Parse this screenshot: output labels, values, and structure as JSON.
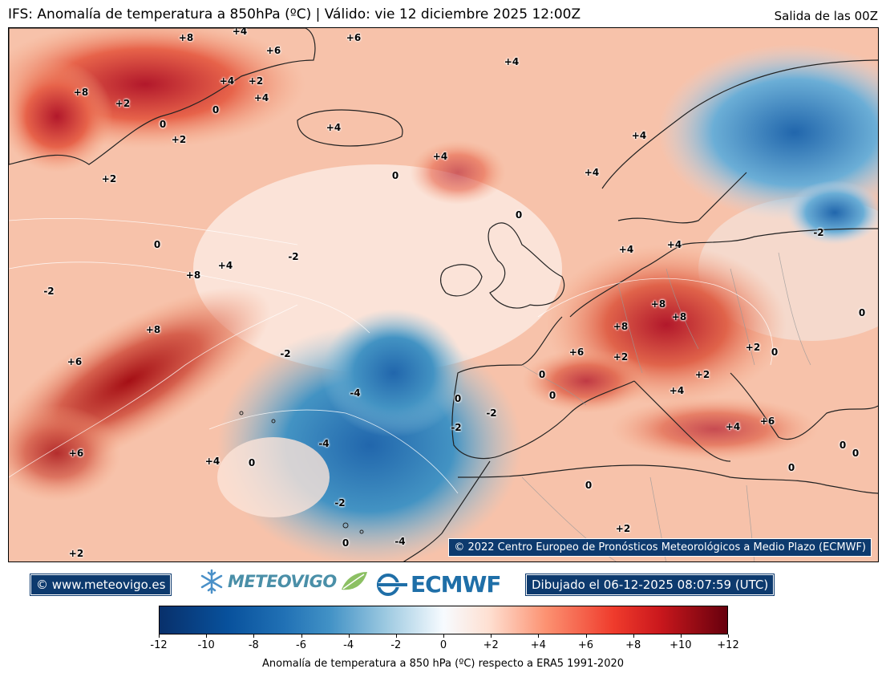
{
  "header": {
    "title": "IFS: Anomalía de temperatura a 850hPa  (ºC) | Válido: vie 12 diciembre 2025 12:00Z",
    "run": "Salida de las 00Z"
  },
  "map": {
    "copyright": "© 2022 Centro Europeo de Pronósticos Meteorológicos a Medio Plazo (ECMWF)",
    "contour_labels": [
      "+8",
      "+4",
      "+6",
      "+6",
      "+4",
      "+8",
      "+2",
      "+4",
      "+2",
      "0",
      "0",
      "+4",
      "+2",
      "+2",
      "+4",
      "+4",
      "0",
      "+4",
      "0",
      "0",
      "+4",
      "+8",
      "-2",
      "-2",
      "+8",
      "+6",
      "+8",
      "-2",
      "+6",
      "-4",
      "-4",
      "+4",
      "0",
      "-2",
      "0",
      "+6",
      "+2",
      "+8",
      "+8",
      "+4",
      "+2",
      "0",
      "+2",
      "+4",
      "+6",
      "+4",
      "0",
      "0",
      "0",
      "0",
      "+2",
      "0",
      "+2",
      "0",
      "0",
      "-4",
      "-2",
      "-2",
      "+4",
      "+4",
      "-2",
      "0"
    ],
    "colors": {
      "ocean_warm": "#f4a582",
      "ocean_cold": "#4393c3",
      "coast": "#222222"
    }
  },
  "footer": {
    "site": "© www.meteovigo.es",
    "brand": "METEOVIGO",
    "ecmwf": "ECMWF",
    "drawn": "Dibujado el 06-12-2025 08:07:59 (UTC)"
  },
  "colorbar": {
    "ticks": [
      "-12",
      "-10",
      "-8",
      "-6",
      "-4",
      "-2",
      "0",
      "+2",
      "+4",
      "+6",
      "+8",
      "+10",
      "+12"
    ],
    "label": "Anomalía de temperatura a 850 hPa (ºC) respecto a ERA5 1991-2020"
  }
}
